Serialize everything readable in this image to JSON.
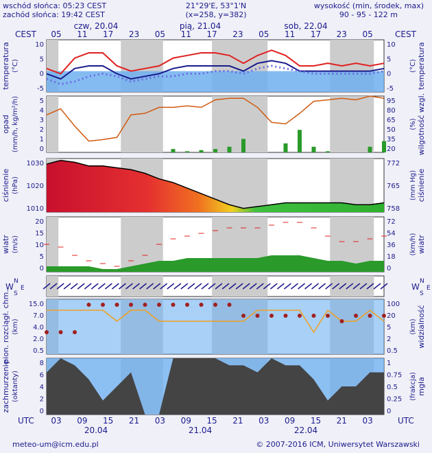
{
  "header": {
    "sunrise": "wschód słońca: 05:23 CEST",
    "sunset": "zachód słońca: 19:42 CEST",
    "coords": "21°29'E, 53°1'N",
    "grid": "(x=258,  y=382)",
    "height_label": "wysokość (min, środek, max)",
    "height_values": "90 - 95 - 122 m"
  },
  "top_axis": {
    "tz": "CEST",
    "days": [
      "czw, 20.04",
      "pią, 21.04",
      "sob, 22.04"
    ],
    "hours": [
      "05",
      "11",
      "17",
      "23",
      "05",
      "11",
      "17",
      "23",
      "05",
      "11",
      "17",
      "23",
      "05"
    ]
  },
  "bottom_axis": {
    "tz": "UTC",
    "hours": [
      "03",
      "09",
      "15",
      "21",
      "03",
      "09",
      "15",
      "21",
      "03",
      "09",
      "15",
      "21",
      "03"
    ],
    "dates": [
      "20.04",
      "21.04",
      "22.04"
    ]
  },
  "footer": {
    "email": "meteo-um@icm.edu.pl",
    "copyright": "© 2007-2016 ICM, Uniwersytet Warszawski"
  },
  "colors": {
    "blue": "#1a1a8c",
    "red": "#e02020",
    "orange": "#d05a10",
    "bg": "#6fb0f0",
    "night": "#cccccc"
  },
  "panels": {
    "temperature": {
      "left": "temperatura",
      "left_unit": "(°C)",
      "right": "temperatura",
      "right_unit": "(°C)",
      "ticks": [
        "10",
        "5",
        "0",
        "-5"
      ]
    },
    "precip": {
      "left": "opad",
      "left_unit": "(mm/h, kg/m²/h)",
      "right": "wilgotność wzgl.",
      "right_unit": "(%)",
      "ticks_left": [
        "5",
        "4",
        "3",
        "2",
        "1",
        "0"
      ],
      "ticks_right": [
        "95",
        "80",
        "65",
        "50",
        "35",
        "20"
      ]
    },
    "pressure": {
      "left": "ciśnienie",
      "left_unit": "(hPa)",
      "right": "ciśnienie",
      "right_unit": "(mm Hg)",
      "ticks_left": [
        "1030",
        "1020",
        "1010"
      ],
      "ticks_right": [
        "772",
        "765",
        "758"
      ]
    },
    "wind": {
      "left": "wiatr",
      "left_unit": "(m/s)",
      "right": "wiatr",
      "right_unit": "(km/h)",
      "ticks_left": [
        "20",
        "15",
        "10",
        "5",
        "0"
      ],
      "ticks_right": [
        "72",
        "54",
        "36",
        "18",
        "0"
      ]
    },
    "direction": {
      "n": "N",
      "s": "S",
      "w": "W",
      "e": "E"
    },
    "cloudbase": {
      "left": "pion. rozciągł. chm.",
      "left_unit": "(km)",
      "right": "widzialność",
      "right_unit": "(km)",
      "ticks_left": [
        "15.0",
        "7.0",
        "4.0",
        "2.0",
        "0.5"
      ],
      "ticks_right": [
        "100",
        "20",
        "5",
        "2",
        "0.5"
      ]
    },
    "clouds": {
      "left": "zachmurzenie",
      "left_unit": "(oktanty)",
      "right": "mgła",
      "right_unit": "(frakcja)",
      "ticks_left": [
        "8",
        "6",
        "4",
        "2",
        "0"
      ],
      "ticks_right": [
        "1",
        "0.75",
        "0.5",
        "0.25",
        "0"
      ]
    }
  },
  "chart_data": [
    {
      "type": "line",
      "name": "temperature",
      "ylim": [
        -8,
        12
      ],
      "x_hours": [
        0,
        3,
        6,
        9,
        12,
        15,
        18,
        21,
        24,
        27,
        30,
        33,
        36,
        39,
        42,
        45,
        48,
        51,
        54,
        57,
        60,
        63,
        66,
        69,
        72
      ],
      "series": [
        {
          "name": "max",
          "values": [
            1,
            -1,
            5,
            7,
            7,
            2,
            0,
            1,
            2,
            5,
            6,
            7,
            7,
            6,
            3,
            6,
            8,
            6,
            2,
            2,
            3,
            2,
            3,
            2,
            3
          ]
        },
        {
          "name": "mean",
          "values": [
            -1,
            -3,
            1,
            2,
            2,
            -1,
            -3,
            -2,
            -1,
            1,
            2,
            2,
            2,
            2,
            0,
            3,
            4,
            3,
            0,
            0,
            0,
            0,
            0,
            0,
            1
          ]
        },
        {
          "name": "dew",
          "values": [
            -3,
            -5,
            -4,
            -2,
            -1,
            -2,
            -4,
            -3,
            -2,
            -2,
            -1,
            -1,
            0,
            0,
            -1,
            1,
            2,
            1,
            0,
            -1,
            -1,
            -1,
            -1,
            -1,
            0
          ]
        }
      ]
    },
    {
      "type": "bar",
      "name": "precip_humidity",
      "ylim": [
        0,
        5
      ],
      "humidity_ylim": [
        20,
        95
      ],
      "humidity": [
        70,
        78,
        55,
        35,
        37,
        40,
        70,
        72,
        80,
        80,
        82,
        80,
        90,
        92,
        92,
        80,
        60,
        58,
        72,
        88,
        90,
        92,
        90,
        95,
        92
      ],
      "precip": [
        0,
        0,
        0,
        0,
        0,
        0,
        0,
        0,
        0,
        0.3,
        0.1,
        0.2,
        0.3,
        0.5,
        1.2,
        0,
        0,
        0.8,
        2,
        0.5,
        0.1,
        0,
        0,
        0.5,
        1
      ]
    },
    {
      "type": "area",
      "name": "pressure",
      "ylim": [
        1004,
        1033
      ],
      "values": [
        1030,
        1032,
        1031,
        1029,
        1029,
        1028,
        1027,
        1025,
        1022,
        1020,
        1017,
        1014,
        1011,
        1008,
        1006,
        1007,
        1008,
        1009,
        1009,
        1009,
        1009,
        1009,
        1008,
        1008,
        1009
      ]
    },
    {
      "type": "line",
      "name": "wind",
      "ylim": [
        0,
        20
      ],
      "gusts": [
        10,
        9,
        6,
        4,
        3,
        2,
        4,
        6,
        10,
        12,
        13,
        14,
        15,
        16,
        16,
        16,
        17,
        18,
        18,
        16,
        13,
        11,
        11,
        12,
        13
      ],
      "speed": [
        2,
        2,
        2,
        2,
        1,
        1,
        2,
        3,
        4,
        4,
        5,
        5,
        5,
        5,
        5,
        5,
        6,
        6,
        6,
        5,
        4,
        4,
        3,
        4,
        4
      ]
    },
    {
      "type": "scatter",
      "name": "cloudbase",
      "ylim": [
        0,
        5
      ],
      "orange": [
        4,
        4,
        4,
        4,
        4,
        3,
        4,
        4,
        3,
        3,
        3,
        3,
        3,
        3,
        3,
        4,
        4,
        4,
        4,
        2,
        4,
        3,
        3,
        4,
        3
      ],
      "red": [
        2,
        2,
        2,
        4.5,
        4.5,
        4.5,
        4.5,
        4.5,
        4.5,
        4.5,
        4.5,
        4.5,
        4.5,
        4.5,
        3.5,
        3.5,
        3.5,
        3.5,
        3.5,
        3.5,
        3.5,
        3,
        3.5,
        3.5,
        3.5
      ]
    },
    {
      "type": "area",
      "name": "clouds",
      "ylim": [
        0,
        8
      ],
      "values": [
        6,
        8,
        7,
        5,
        2,
        4,
        6,
        0,
        0,
        8,
        8,
        8,
        8,
        7,
        7,
        6,
        8,
        7,
        7,
        5,
        2,
        4,
        4,
        6,
        6
      ]
    }
  ]
}
